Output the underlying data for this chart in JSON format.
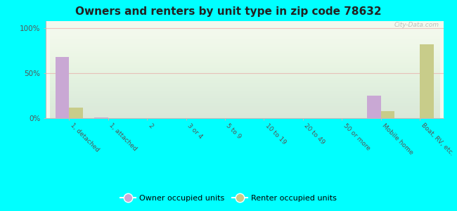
{
  "title": "Owners and renters by unit type in zip code 78632",
  "categories": [
    "1, detached",
    "1, attached",
    "2",
    "3 or 4",
    "5 to 9",
    "10 to 19",
    "20 to 49",
    "50 or more",
    "Mobile home",
    "Boat, RV, etc."
  ],
  "owner_values": [
    68,
    1,
    0,
    0,
    0,
    0,
    0,
    0,
    25,
    0
  ],
  "renter_values": [
    12,
    0,
    0,
    0,
    0,
    0,
    0,
    0,
    8,
    82
  ],
  "owner_color": "#c9a8d4",
  "renter_color": "#c8cc8a",
  "outer_bg": "#00ffff",
  "ylabel_ticks": [
    "0%",
    "50%",
    "100%"
  ],
  "yticks": [
    0,
    50,
    100
  ],
  "ylim": [
    0,
    108
  ],
  "legend_owner": "Owner occupied units",
  "legend_renter": "Renter occupied units",
  "title_fontsize": 11,
  "bar_width": 0.35,
  "grid_color": "#e8a0a0",
  "grid_alpha": 0.6,
  "watermark": "City-Data.com"
}
